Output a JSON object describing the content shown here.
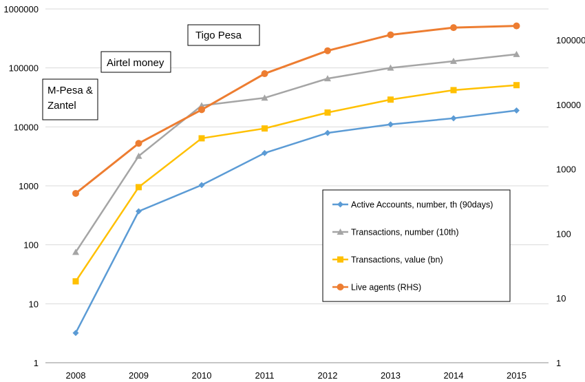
{
  "chart_data": {
    "type": "line",
    "x": [
      "2008",
      "2009",
      "2010",
      "2011",
      "2012",
      "2013",
      "2014",
      "2015"
    ],
    "y_scale": "log",
    "ylim_left": [
      1,
      1000000
    ],
    "ylim_right": [
      1,
      1000000
    ],
    "left_ticks": [
      "1",
      "10",
      "100",
      "1000",
      "10000",
      "100000",
      "1000000"
    ],
    "right_ticks": [
      "1",
      "10",
      "100",
      "1000",
      "10000",
      "100000"
    ],
    "grid": "horizontal",
    "legend_position": "bottom-right",
    "series": [
      {
        "name": "Active Accounts, number, th (90days)",
        "axis": "left",
        "marker": "diamond",
        "color": "#5b9bd5",
        "values": [
          3.2,
          370,
          1030,
          3600,
          7900,
          11000,
          14000,
          19000
        ]
      },
      {
        "name": "Transactions, number (10th)",
        "axis": "left",
        "marker": "triangle",
        "color": "#a5a5a5",
        "values": [
          75,
          3200,
          23000,
          31000,
          66000,
          100000,
          130000,
          170000
        ]
      },
      {
        "name": "Transactions, value (bn)",
        "axis": "left",
        "marker": "square",
        "color": "#ffc000",
        "values": [
          24,
          950,
          6400,
          9400,
          17500,
          29000,
          42000,
          51000
        ]
      },
      {
        "name": "Live agents (RHS)",
        "axis": "right",
        "marker": "circle",
        "color": "#ed7d31",
        "values": [
          420,
          2500,
          8300,
          30000,
          68000,
          120000,
          155000,
          165000
        ]
      }
    ],
    "annotations": [
      "M-Pesa & Zantel",
      "Airtel money",
      "Tigo Pesa"
    ]
  }
}
